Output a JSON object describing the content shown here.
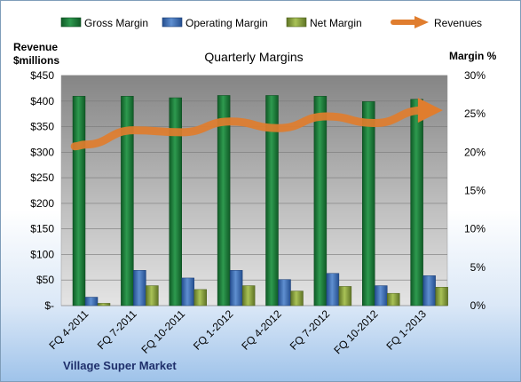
{
  "chart_data": {
    "type": "bar",
    "title": "Quarterly Margins",
    "company": "Village Super Market",
    "left_axis": {
      "label_line1": "Revenue",
      "label_line2": "$millions",
      "ticks": [
        "$-",
        "$50",
        "$100",
        "$150",
        "$200",
        "$250",
        "$300",
        "$350",
        "$400",
        "$450"
      ],
      "ylim": [
        0,
        450
      ]
    },
    "right_axis": {
      "label": "Margin %",
      "ticks": [
        "0%",
        "5%",
        "10%",
        "15%",
        "20%",
        "25%",
        "30%"
      ],
      "ylim": [
        0,
        30
      ]
    },
    "categories": [
      "FQ 4-2011",
      "FQ 7-2011",
      "FQ 10-2011",
      "FQ 1-2012",
      "FQ 4-2012",
      "FQ 7-2012",
      "FQ 10-2012",
      "FQ 1-2013"
    ],
    "series": [
      {
        "name": "Gross Margin",
        "axis": "right",
        "color": "#1e7a3a",
        "values": [
          27.3,
          27.3,
          27.1,
          27.4,
          27.4,
          27.3,
          26.6,
          26.9
        ]
      },
      {
        "name": "Operating Margin",
        "axis": "right",
        "color": "#3d6db5",
        "values": [
          1.1,
          4.6,
          3.6,
          4.6,
          3.4,
          4.2,
          2.6,
          3.9
        ]
      },
      {
        "name": "Net Margin",
        "axis": "right",
        "color": "#8ea83e",
        "values": [
          0.3,
          2.6,
          2.1,
          2.6,
          1.9,
          2.5,
          1.6,
          2.4
        ]
      },
      {
        "name": "Revenues",
        "axis": "left",
        "type": "line",
        "color": "#e07d2e",
        "values": [
          315,
          343,
          339,
          360,
          347,
          370,
          357,
          382
        ]
      }
    ],
    "grid": true,
    "legend_position": "top"
  }
}
